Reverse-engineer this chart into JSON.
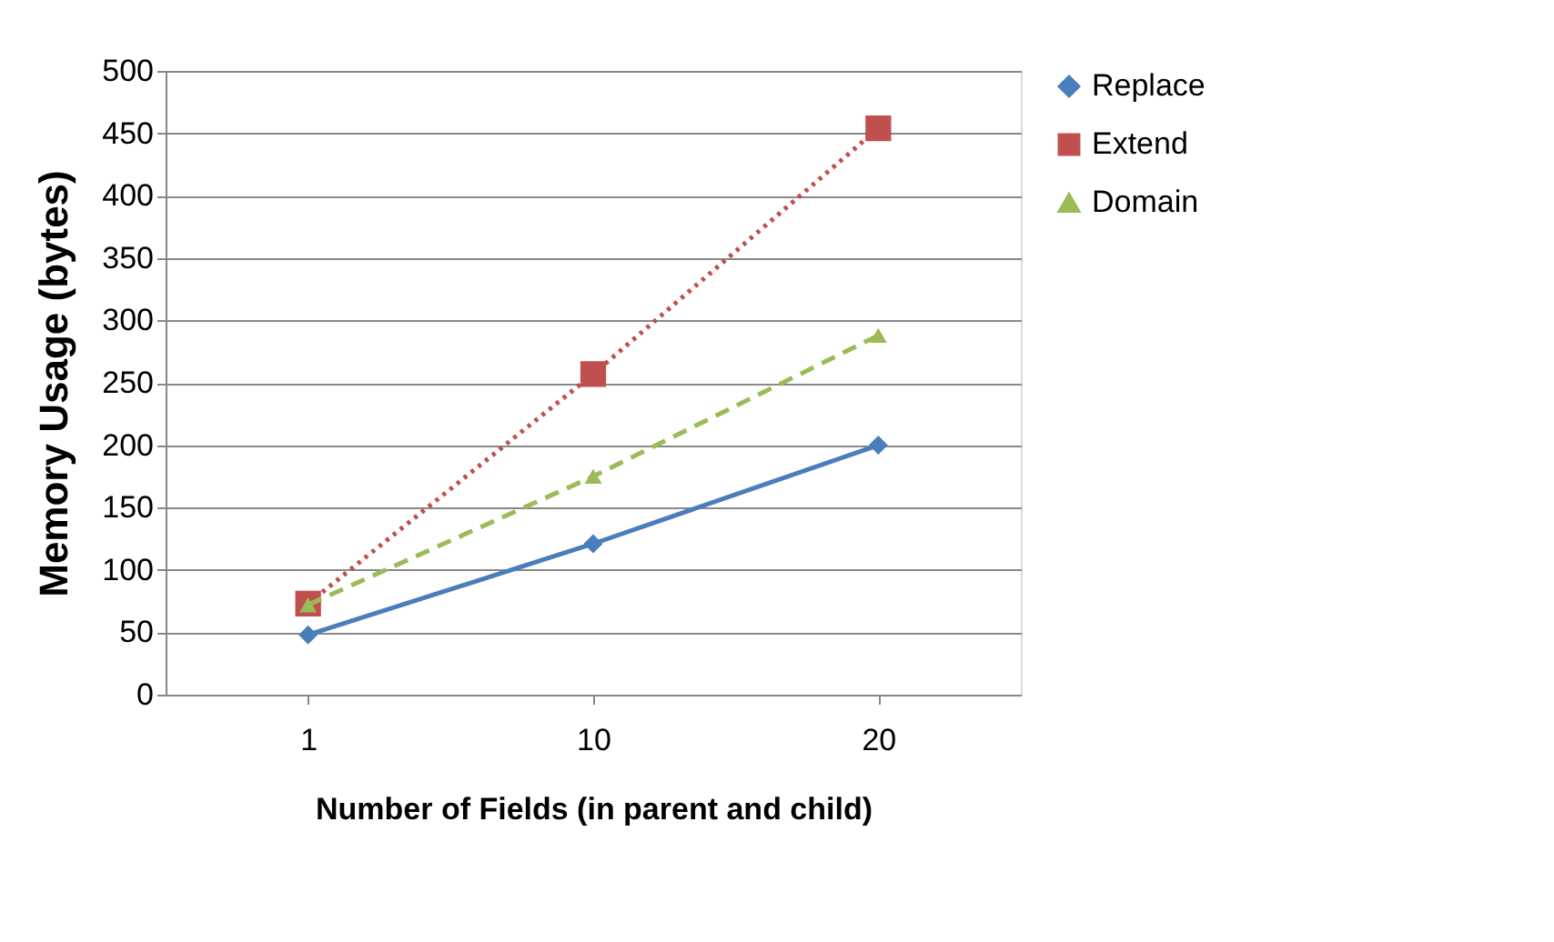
{
  "chart_data": {
    "type": "line",
    "xlabel": "Number of Fields (in parent and child)",
    "ylabel": "Memory Usage (bytes)",
    "categories": [
      "1",
      "10",
      "20"
    ],
    "series": [
      {
        "name": "Replace",
        "color": "#4a7ebb",
        "values": [
          48,
          121,
          200
        ],
        "marker": "diamond",
        "line_style": "solid"
      },
      {
        "name": "Extend",
        "color": "#c0504d",
        "values": [
          73,
          257,
          454
        ],
        "marker": "square",
        "line_style": "dotted"
      },
      {
        "name": "Domain",
        "color": "#9bbb59",
        "values": [
          72,
          175,
          288
        ],
        "marker": "triangle",
        "line_style": "dashed"
      }
    ],
    "ylim": [
      0,
      500
    ],
    "yticks": [
      0,
      50,
      100,
      150,
      200,
      250,
      300,
      350,
      400,
      450,
      500
    ],
    "grid": "y",
    "legend": "right"
  }
}
